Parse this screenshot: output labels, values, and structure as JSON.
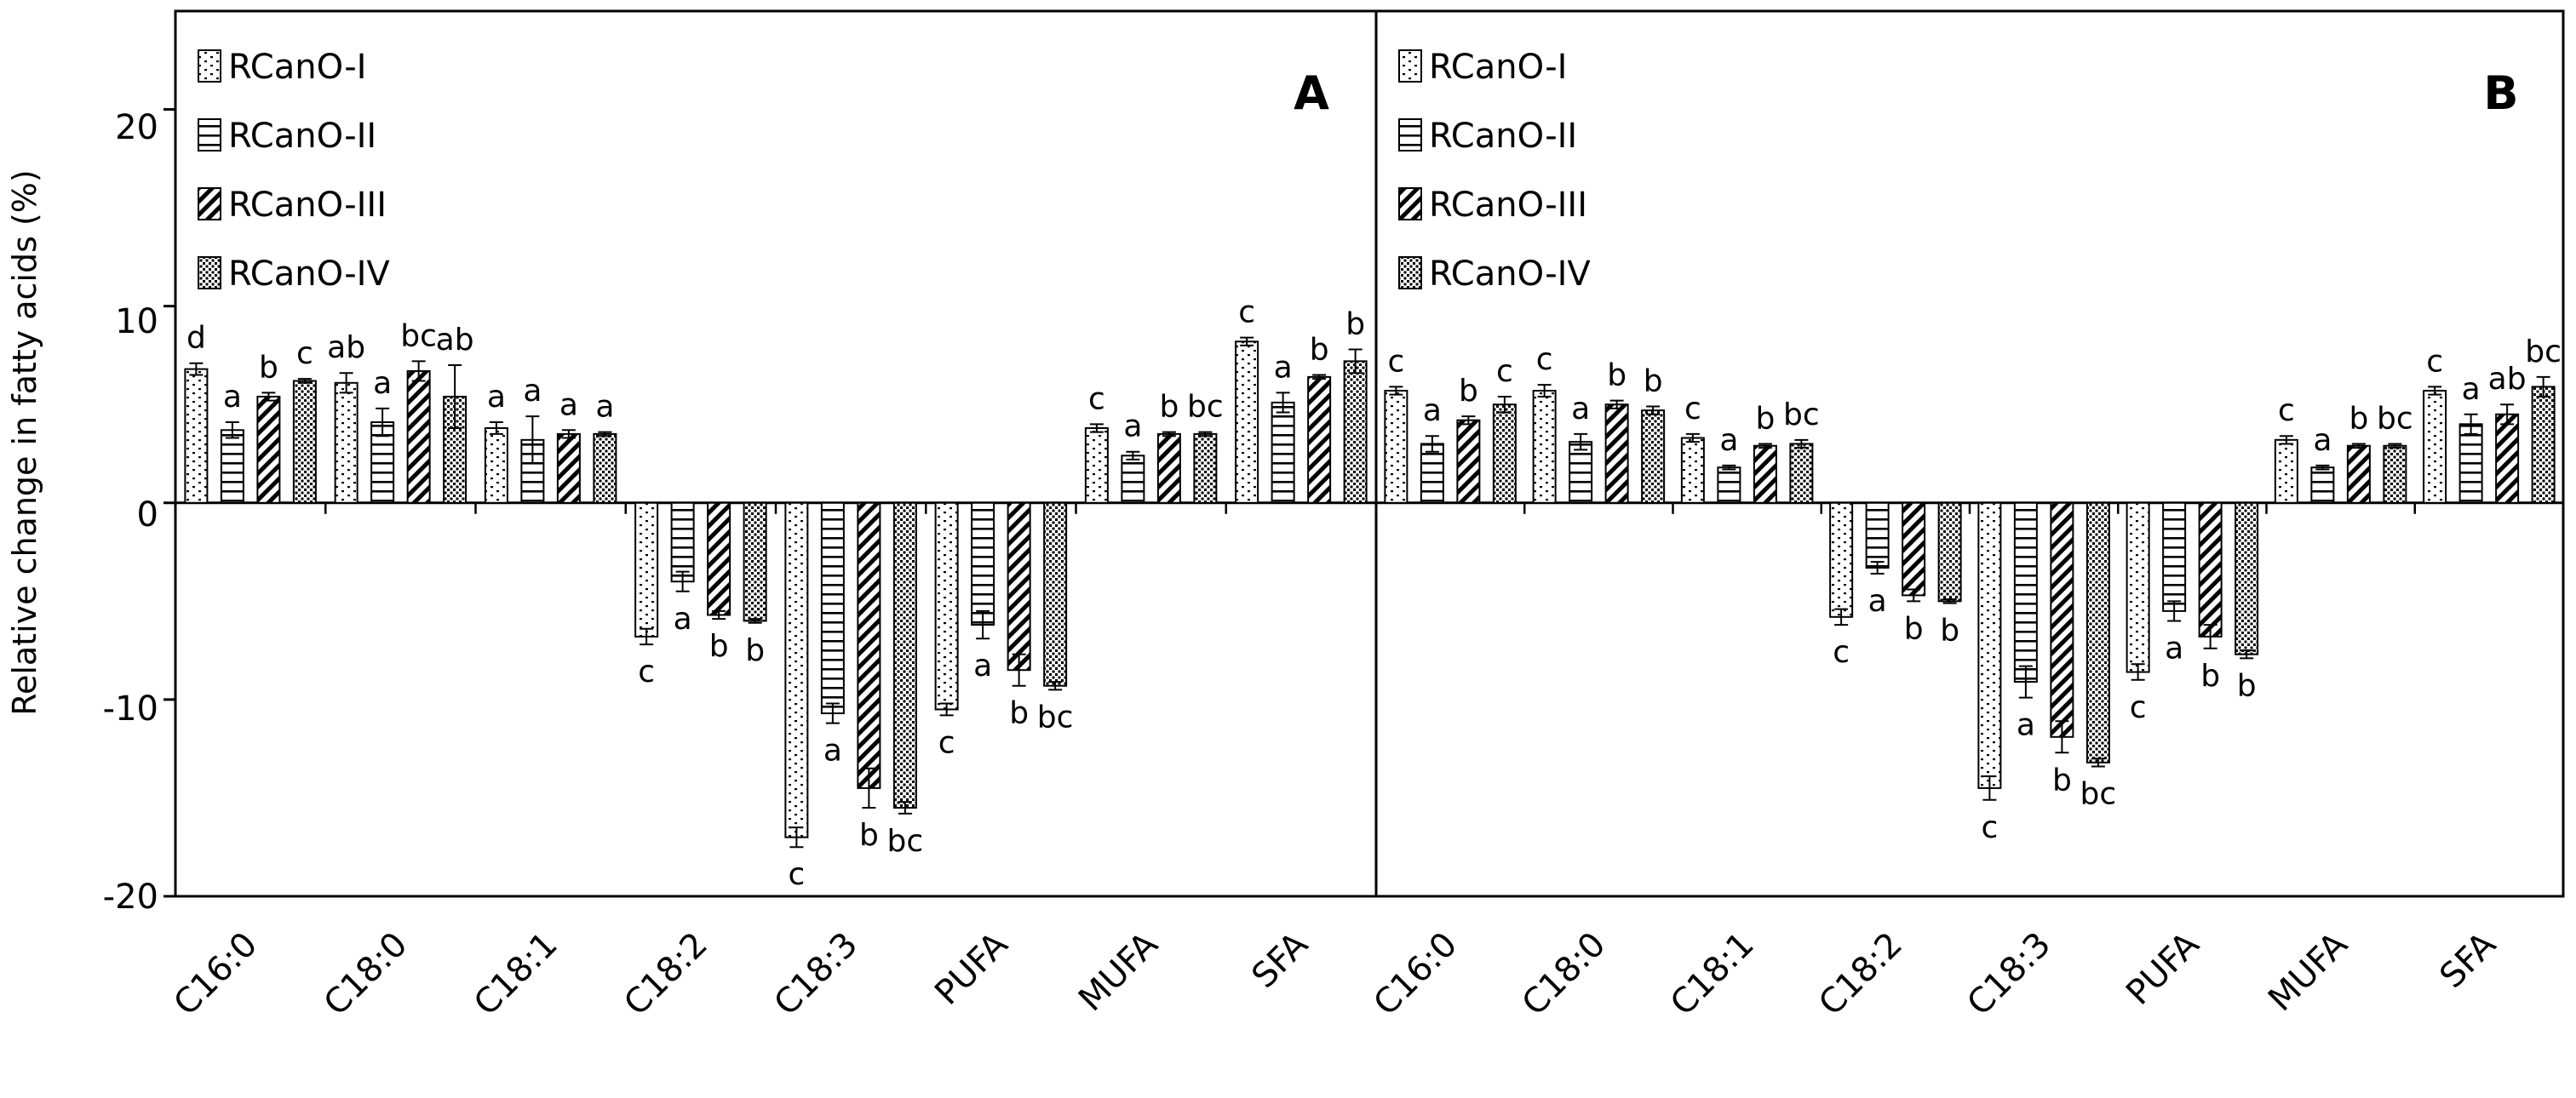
{
  "chart_data": [
    {
      "type": "bar",
      "panel_label": "A",
      "categories": [
        "C16:0",
        "C18:0",
        "C18:1",
        "C18:2",
        "C18:3",
        "PUFA",
        "MUFA",
        "SFA"
      ],
      "series": [
        {
          "name": "RCanO-I",
          "values": [
            6.8,
            6.1,
            3.8,
            -6.8,
            -17.0,
            -10.5,
            3.8,
            8.2
          ],
          "errors": [
            0.3,
            0.5,
            0.3,
            0.4,
            0.5,
            0.3,
            0.2,
            0.2
          ]
        },
        {
          "name": "RCanO-II",
          "values": [
            3.7,
            4.1,
            3.2,
            -4.0,
            -10.7,
            -6.2,
            2.4,
            5.1
          ],
          "errors": [
            0.4,
            0.7,
            1.2,
            0.5,
            0.5,
            0.7,
            0.2,
            0.5
          ]
        },
        {
          "name": "RCanO-III",
          "values": [
            5.4,
            6.7,
            3.5,
            -5.7,
            -14.5,
            -8.5,
            3.5,
            6.4
          ],
          "errors": [
            0.2,
            0.5,
            0.2,
            0.2,
            1.0,
            0.8,
            0.1,
            0.1
          ]
        },
        {
          "name": "RCanO-IV",
          "values": [
            6.2,
            5.4,
            3.5,
            -6.0,
            -15.5,
            -9.3,
            3.5,
            7.2
          ],
          "errors": [
            0.1,
            1.6,
            0.1,
            0.1,
            0.3,
            0.2,
            0.1,
            0.6
          ]
        }
      ],
      "letters": [
        [
          "d",
          "a",
          "b",
          "c"
        ],
        [
          "ab",
          "a",
          "bc",
          "ab"
        ],
        [
          "a",
          "a",
          "a",
          "a"
        ],
        [
          "c",
          "a",
          "b",
          "b"
        ],
        [
          "c",
          "a",
          "b",
          "bc"
        ],
        [
          "c",
          "a",
          "b",
          "bc"
        ],
        [
          "c",
          "a",
          "b",
          "bc"
        ],
        [
          "c",
          "a",
          "b",
          "b"
        ]
      ],
      "title": "",
      "xlabel": "",
      "ylabel": "Relative change in fatty acids (%)",
      "ylim": [
        -20,
        25
      ],
      "yticks": [
        "20",
        "10",
        "0",
        "-10",
        "-20"
      ],
      "ytick_values": [
        20,
        10,
        0,
        -10,
        -20
      ],
      "grid": false,
      "legend_position": "top-left"
    },
    {
      "type": "bar",
      "panel_label": "B",
      "categories": [
        "C16:0",
        "C18:0",
        "C18:1",
        "C18:2",
        "C18:3",
        "PUFA",
        "MUFA",
        "SFA"
      ],
      "series": [
        {
          "name": "RCanO-I",
          "values": [
            5.7,
            5.7,
            3.3,
            -5.8,
            -14.5,
            -8.6,
            3.2,
            5.7
          ],
          "errors": [
            0.2,
            0.3,
            0.2,
            0.4,
            0.6,
            0.4,
            0.2,
            0.2
          ]
        },
        {
          "name": "RCanO-II",
          "values": [
            3.0,
            3.1,
            1.8,
            -3.3,
            -9.1,
            -5.5,
            1.8,
            4.0
          ],
          "errors": [
            0.4,
            0.4,
            0.1,
            0.3,
            0.8,
            0.5,
            0.1,
            0.5
          ]
        },
        {
          "name": "RCanO-III",
          "values": [
            4.2,
            5.0,
            2.9,
            -4.7,
            -11.9,
            -6.8,
            2.9,
            4.5
          ],
          "errors": [
            0.2,
            0.2,
            0.1,
            0.3,
            0.8,
            0.6,
            0.1,
            0.5
          ]
        },
        {
          "name": "RCanO-IV",
          "values": [
            5.0,
            4.7,
            3.0,
            -5.0,
            -13.2,
            -7.7,
            2.9,
            5.9
          ],
          "errors": [
            0.4,
            0.2,
            0.2,
            0.1,
            0.2,
            0.2,
            0.1,
            0.5
          ]
        }
      ],
      "letters": [
        [
          "c",
          "a",
          "b",
          "c"
        ],
        [
          "c",
          "a",
          "b",
          "b"
        ],
        [
          "c",
          "a",
          "b",
          "bc"
        ],
        [
          "c",
          "a",
          "b",
          "b"
        ],
        [
          "c",
          "a",
          "b",
          "bc"
        ],
        [
          "c",
          "a",
          "b",
          "b"
        ],
        [
          "c",
          "a",
          "b",
          "bc"
        ],
        [
          "c",
          "a",
          "ab",
          "bc"
        ]
      ],
      "title": "",
      "xlabel": "",
      "ylabel": "",
      "ylim": [
        -20,
        25
      ],
      "grid": false,
      "legend_position": "top-left"
    }
  ],
  "colors": {
    "axis": "#000000",
    "bar_fill": "#ffffff",
    "pattern": "#000000"
  }
}
